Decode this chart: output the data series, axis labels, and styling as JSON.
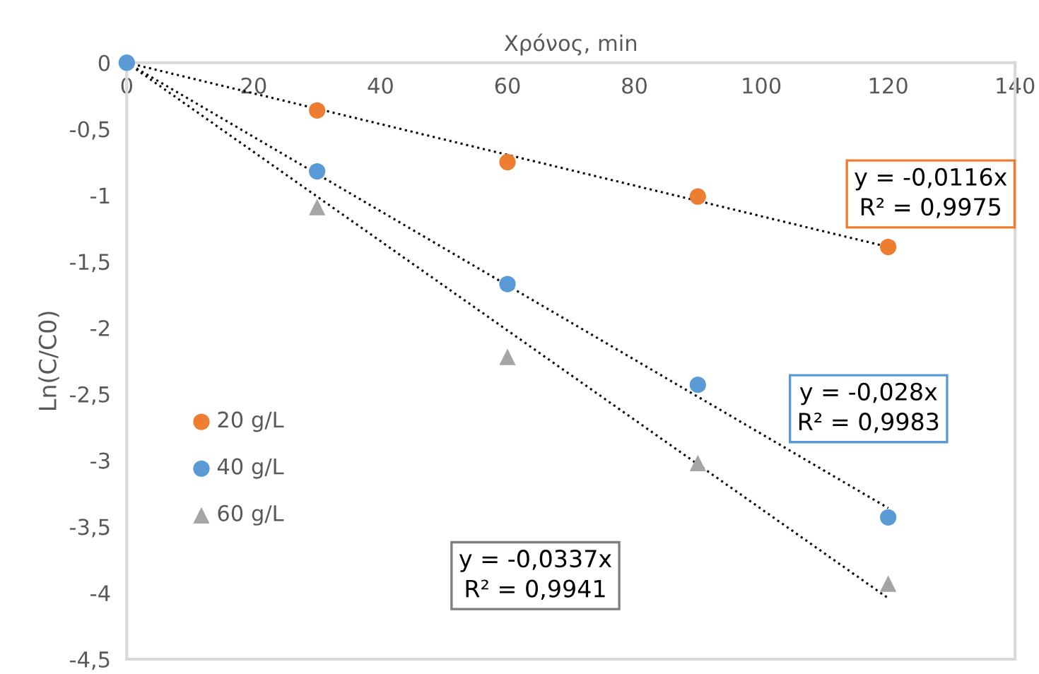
{
  "chart_data": {
    "type": "scatter",
    "xlabel": "Χρόνος, min",
    "ylabel": "Ln(C/C0)",
    "xlim": [
      0,
      140
    ],
    "xticks": [
      0,
      20,
      40,
      60,
      80,
      100,
      120,
      140
    ],
    "ylim": [
      -4.5,
      0
    ],
    "yticks": [
      0,
      {
        "value": -0.5,
        "label": "-0,5"
      },
      -1,
      {
        "value": -1.5,
        "label": "-1,5"
      },
      -2,
      {
        "value": -2.5,
        "label": "-2,5"
      },
      -3,
      {
        "value": -3.5,
        "label": "-3,5"
      },
      -4,
      {
        "value": -4.5,
        "label": "-4,5"
      }
    ],
    "grid": false,
    "legend": "left",
    "series": [
      {
        "name": "20 g/L",
        "color": "#ed7d31",
        "marker": "circle",
        "x": [
          30,
          60,
          90,
          120
        ],
        "values": [
          -0.36,
          -0.75,
          -1.01,
          -1.39
        ]
      },
      {
        "name": "40 g/L",
        "color": "#5b9bd5",
        "marker": "circle",
        "x": [
          0,
          30,
          60,
          90,
          120
        ],
        "values": [
          0,
          -0.82,
          -1.67,
          -2.43,
          -3.43
        ]
      },
      {
        "name": "60 g/L",
        "color": "#a5a5a5",
        "marker": "triangle",
        "x": [
          30,
          60,
          90,
          120
        ],
        "values": [
          -1.09,
          -2.22,
          -3.02,
          -3.93
        ]
      },
      {
        "type": "line",
        "color": "#000000",
        "line_style": "dotted",
        "marker": "none",
        "x": [
          0,
          120
        ],
        "values": [
          0,
          -1.39
        ]
      },
      {
        "type": "line",
        "color": "#000000",
        "line_style": "dotted",
        "marker": "none",
        "x": [
          0,
          120
        ],
        "values": [
          0,
          -3.36
        ]
      },
      {
        "type": "line",
        "color": "#000000",
        "line_style": "dotted",
        "marker": "none",
        "x": [
          0,
          120
        ],
        "values": [
          0,
          -4.04
        ]
      }
    ],
    "annotations": [
      "y = -0,0116x\nR² = 0,9975",
      "y = -0,028x\nR² = 0,9983",
      "y = -0,0337x\nR² = 0,9941"
    ]
  }
}
